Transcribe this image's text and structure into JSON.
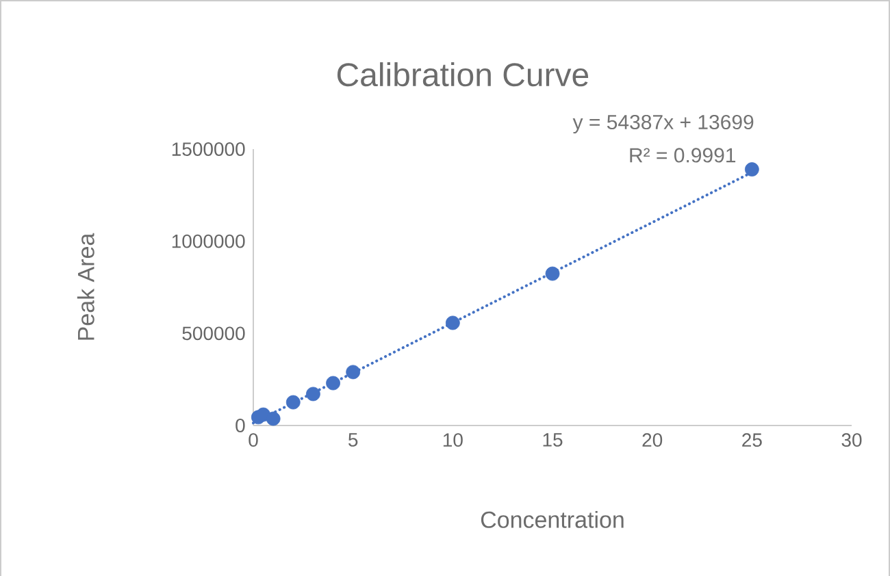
{
  "chart_data": {
    "type": "scatter",
    "title": "Calibration Curve",
    "xlabel": "Concentration",
    "ylabel": "Peak Area",
    "series": [
      {
        "color": "#4472c4",
        "marker": "circle",
        "x": [
          0.25,
          0.5,
          1,
          2,
          3,
          4,
          5,
          10,
          15,
          25
        ],
        "values": [
          45000,
          59000,
          37000,
          126000,
          171000,
          230000,
          290000,
          557000,
          824000,
          1390000
        ]
      },
      {
        "type": "line",
        "color": "#4472c4",
        "marker": "none",
        "line_style": "dotted",
        "x": [
          0,
          25
        ],
        "values": [
          14000,
          1374000
        ]
      }
    ],
    "annotations": [
      "y = 54387x + 13699",
      "R² = 0.9991"
    ],
    "xlim": [
      0,
      30
    ],
    "xticks": [
      0,
      5,
      10,
      15,
      20,
      25,
      30
    ],
    "ylim": [
      0,
      1500000
    ],
    "yticks": [
      0,
      500000,
      1000000,
      1500000
    ],
    "grid": false
  }
}
